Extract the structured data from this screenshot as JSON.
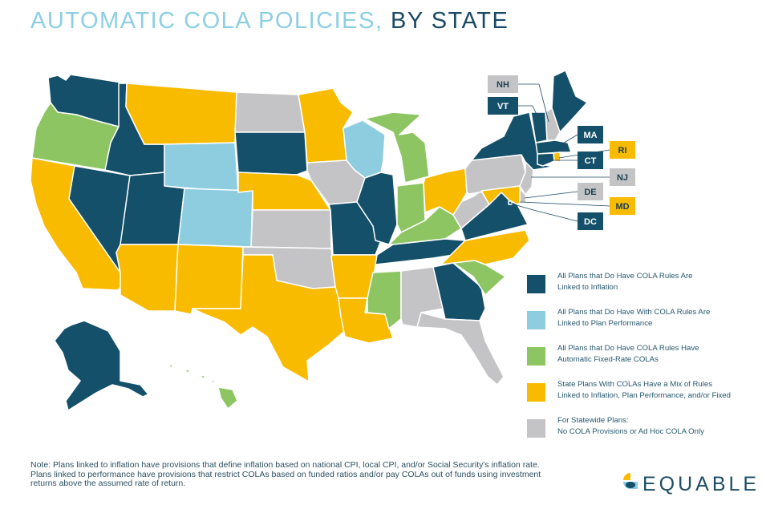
{
  "title": {
    "part1": "AUTOMATIC COLA POLICIES,",
    "part2": "BY STATE"
  },
  "colors": {
    "inflation": "#14506a",
    "performance": "#8ecde0",
    "fixed": "#8dc563",
    "mix": "#f8bb00",
    "none": "#c4c4c6"
  },
  "legend": [
    {
      "category": "inflation",
      "line1": "All Plans that Do Have COLA Rules Are",
      "line2": "Linked to Inflation"
    },
    {
      "category": "performance",
      "line1": "All Plans that Do Have With COLA Rules Are",
      "line2": "Linked to Plan Performance"
    },
    {
      "category": "fixed",
      "line1": "All Plans that Do Have COLA Rules Have",
      "line2": "Automatic Fixed-Rate COLAs"
    },
    {
      "category": "mix",
      "line1": "State Plans With COLAs Have a Mix of Rules",
      "line2": "Linked to Inflation, Plan Performance, and/or Fixed"
    },
    {
      "category": "none",
      "line1": "For Statewide Plans:",
      "line2": "No COLA Provisions or Ad Hoc COLA Only"
    }
  ],
  "states": {
    "WA": "inflation",
    "OR": "fixed",
    "CA": "mix",
    "NV": "inflation",
    "ID": "inflation",
    "MT": "mix",
    "WY": "performance",
    "UT": "inflation",
    "AZ": "mix",
    "CO": "performance",
    "NM": "mix",
    "ND": "none",
    "SD": "inflation",
    "NE": "mix",
    "KS": "none",
    "OK": "none",
    "TX": "mix",
    "MN": "mix",
    "IA": "none",
    "MO": "inflation",
    "AR": "mix",
    "LA": "mix",
    "WI": "performance",
    "IL": "inflation",
    "MS": "fixed",
    "MI": "fixed",
    "IN": "fixed",
    "KY": "fixed",
    "TN": "inflation",
    "AL": "none",
    "GA": "inflation",
    "FL": "none",
    "SC": "fixed",
    "NC": "mix",
    "VA": "inflation",
    "WV": "none",
    "OH": "mix",
    "PA": "none",
    "NY": "inflation",
    "ME": "inflation",
    "NH": "none",
    "VT": "inflation",
    "MA": "inflation",
    "RI": "mix",
    "CT": "inflation",
    "NJ": "none",
    "DE": "none",
    "MD": "mix",
    "DC": "inflation",
    "AK": "inflation",
    "HI": "fixed"
  },
  "callouts": [
    {
      "label": "NH",
      "category": "none"
    },
    {
      "label": "VT",
      "category": "inflation"
    },
    {
      "label": "MA",
      "category": "inflation"
    },
    {
      "label": "RI",
      "category": "mix"
    },
    {
      "label": "CT",
      "category": "inflation"
    },
    {
      "label": "NJ",
      "category": "none"
    },
    {
      "label": "DE",
      "category": "none"
    },
    {
      "label": "MD",
      "category": "mix"
    },
    {
      "label": "DC",
      "category": "inflation"
    }
  ],
  "note": "Note: Plans linked to inflation have provisions that define inflation based on national CPI, local CPI, and/or Social Security's inflation rate. Plans linked to performance have provisions that restrict COLAs based on funded ratios and/or pay COLAs out of funds using investment returns above the assumed rate of return.",
  "logo": {
    "text": "EQUABLE"
  }
}
